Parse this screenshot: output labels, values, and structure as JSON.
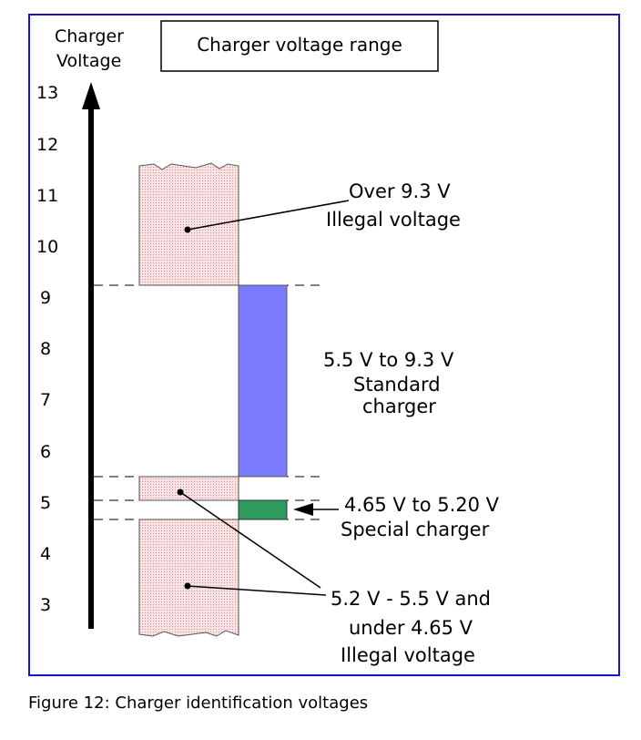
{
  "title_box": "Charger voltage range",
  "axis_label": [
    "Charger",
    "Voltage"
  ],
  "ticks": [
    "13",
    "12",
    "11",
    "10",
    "9",
    "8",
    "7",
    "6",
    "5",
    "4",
    "3"
  ],
  "annotations": {
    "over": [
      "Over 9.3 V",
      "Illegal voltage"
    ],
    "standard": [
      "5.5 V to 9.3 V",
      "Standard",
      "charger"
    ],
    "special": [
      "4.65 V to 5.20 V",
      "Special  charger"
    ],
    "illegal_low": [
      "5.2 V - 5.5 V and",
      "under 4.65 V",
      "Illegal voltage"
    ]
  },
  "bands": [
    {
      "name": "over-9.3",
      "from": 9.3,
      "to": 11.7,
      "kind": "illegal"
    },
    {
      "name": "standard",
      "from": 5.5,
      "to": 9.3,
      "kind": "standard"
    },
    {
      "name": "special",
      "from": 4.65,
      "to": 5.2,
      "kind": "special"
    },
    {
      "name": "illegal-5.2-5.5",
      "from": 5.2,
      "to": 5.5,
      "kind": "illegal"
    },
    {
      "name": "under-4.65",
      "from": 2.55,
      "to": 4.65,
      "kind": "illegal"
    }
  ],
  "thresholds": [
    9.3,
    5.5,
    5.2,
    4.65
  ],
  "colors": {
    "frame": "#1414c8",
    "standard": "#7b7bff",
    "special": "#2e9a5e",
    "illegal_fill": "#f6dede",
    "illegal_dot": "#e08a8a"
  },
  "caption": "Figure 12: Charger identification voltages"
}
